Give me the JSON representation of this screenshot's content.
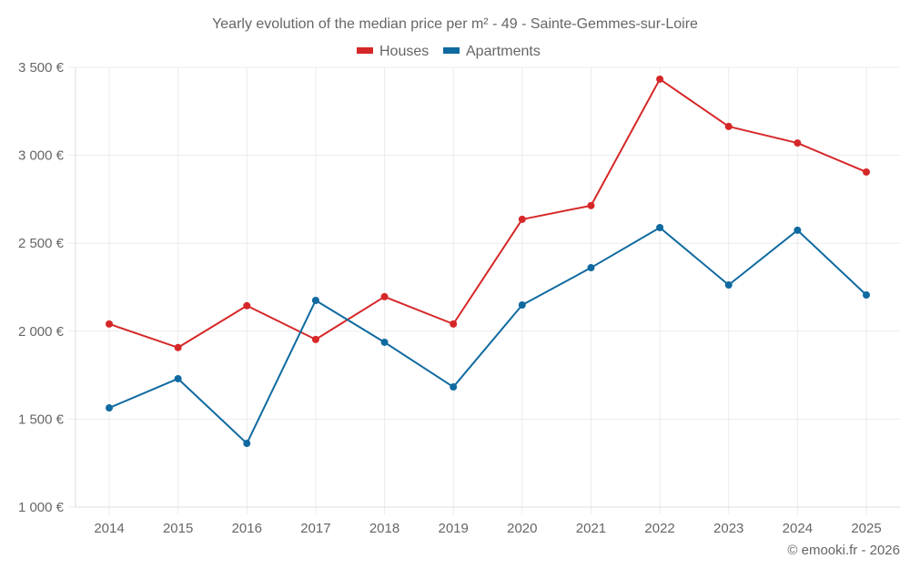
{
  "chart_data": {
    "type": "line",
    "title": "Yearly evolution of the median price per m² - 49 - Sainte-Gemmes-sur-Loire",
    "xlabel": "",
    "ylabel": "",
    "categories": [
      "2014",
      "2015",
      "2016",
      "2017",
      "2018",
      "2019",
      "2020",
      "2021",
      "2022",
      "2023",
      "2024",
      "2025"
    ],
    "series": [
      {
        "name": "Houses",
        "color": "#d62728",
        "values": [
          2041,
          1907,
          2145,
          1953,
          2196,
          2041,
          2636,
          2714,
          3433,
          3164,
          3070,
          2905
        ]
      },
      {
        "name": "Apartments",
        "color": "#0f6aa0",
        "values": [
          1564,
          1730,
          1362,
          2175,
          1937,
          1683,
          2149,
          2361,
          2589,
          2263,
          2574,
          2206
        ]
      }
    ],
    "ylim": [
      1000,
      3500
    ],
    "yticks": [
      1000,
      1500,
      2000,
      2500,
      3000,
      3500
    ],
    "ytick_labels": [
      "1 000 €",
      "1 500 €",
      "2 000 €",
      "2 500 €",
      "3 000 €",
      "3 500 €"
    ],
    "grid": true,
    "legend_position": "top-center"
  },
  "credit": "© emooki.fr - 2026"
}
